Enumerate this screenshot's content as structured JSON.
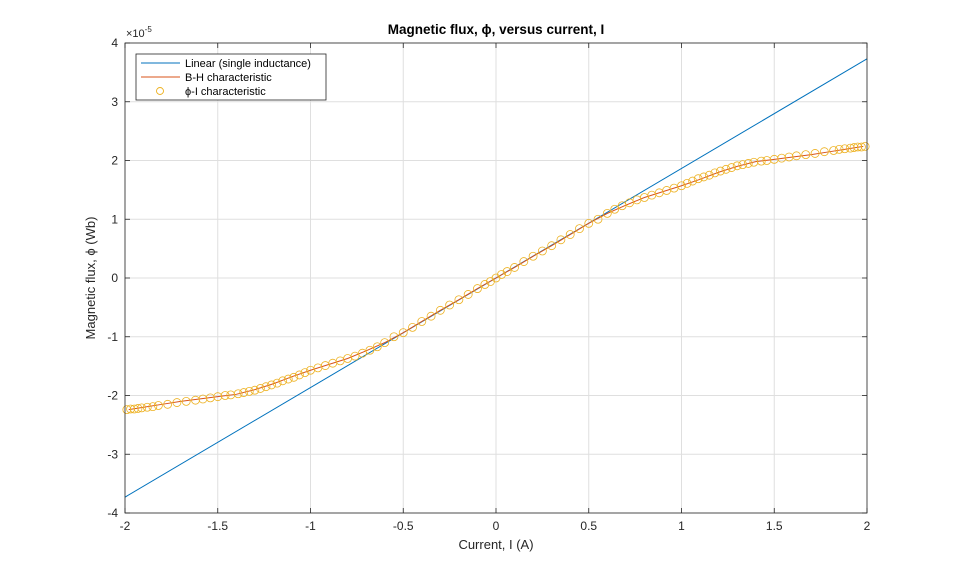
{
  "chart_data": {
    "type": "line",
    "title": "Magnetic flux, ϕ, versus current, I",
    "xlabel": "Current, I (A)",
    "ylabel": "Magnetic flux, ϕ  (Wb)",
    "y_exponent_base": "×10",
    "y_exponent_power": "-5",
    "xlim": [
      -2,
      2
    ],
    "ylim": [
      -4,
      4
    ],
    "x_ticks": [
      -2,
      -1.5,
      -1,
      -0.5,
      0,
      0.5,
      1,
      1.5,
      2
    ],
    "x_tick_labels": [
      "-2",
      "-1.5",
      "-1",
      "-0.5",
      "0",
      "0.5",
      "1",
      "1.5",
      "2"
    ],
    "y_ticks": [
      -4,
      -3,
      -2,
      -1,
      0,
      1,
      2,
      3,
      4
    ],
    "y_tick_labels": [
      "-4",
      "-3",
      "-2",
      "-1",
      "0",
      "1",
      "2",
      "3",
      "4"
    ],
    "grid": true,
    "legend_position": "top-left",
    "colors": {
      "linear": "#0072BD",
      "bh": "#D95319",
      "phi_i": "#EDB120"
    },
    "series": [
      {
        "name": "Linear (single inductance)",
        "style": "line",
        "x": [
          -2,
          2
        ],
        "y": [
          -3.73,
          3.73
        ]
      },
      {
        "name": "B-H characteristic",
        "style": "line",
        "x": [
          -1.98,
          -1.9,
          -1.8,
          -1.7,
          -1.6,
          -1.5,
          -1.4,
          -1.3,
          -1.2,
          -1.1,
          -1.0,
          -0.9,
          -0.8,
          -0.7,
          -0.6,
          -0.5,
          -0.4,
          -0.3,
          -0.2,
          -0.1,
          0,
          0.1,
          0.2,
          0.3,
          0.4,
          0.5,
          0.6,
          0.7,
          0.8,
          0.9,
          1.0,
          1.1,
          1.2,
          1.3,
          1.4,
          1.5,
          1.6,
          1.7,
          1.8,
          1.9,
          1.98
        ],
        "y": [
          -2.24,
          -2.2,
          -2.15,
          -2.1,
          -2.06,
          -2.02,
          -1.98,
          -1.9,
          -1.8,
          -1.68,
          -1.57,
          -1.47,
          -1.37,
          -1.24,
          -1.1,
          -0.93,
          -0.74,
          -0.55,
          -0.37,
          -0.18,
          0,
          0.18,
          0.37,
          0.55,
          0.74,
          0.93,
          1.1,
          1.24,
          1.37,
          1.47,
          1.57,
          1.68,
          1.8,
          1.9,
          1.98,
          2.02,
          2.06,
          2.1,
          2.15,
          2.2,
          2.24
        ]
      },
      {
        "name": "ϕ-I characteristic",
        "style": "markers",
        "x": [
          -1.99,
          -1.97,
          -1.95,
          -1.93,
          -1.91,
          -1.88,
          -1.85,
          -1.82,
          -1.77,
          -1.72,
          -1.67,
          -1.62,
          -1.58,
          -1.54,
          -1.5,
          -1.46,
          -1.43,
          -1.39,
          -1.36,
          -1.33,
          -1.3,
          -1.27,
          -1.24,
          -1.21,
          -1.18,
          -1.15,
          -1.12,
          -1.09,
          -1.06,
          -1.03,
          -1.0,
          -0.96,
          -0.92,
          -0.88,
          -0.84,
          -0.8,
          -0.76,
          -0.72,
          -0.68,
          -0.64,
          -0.6,
          -0.55,
          -0.5,
          -0.45,
          -0.4,
          -0.35,
          -0.3,
          -0.25,
          -0.2,
          -0.15,
          -0.1,
          -0.06,
          -0.03,
          0,
          0.03,
          0.06,
          0.1,
          0.15,
          0.2,
          0.25,
          0.3,
          0.35,
          0.4,
          0.45,
          0.5,
          0.55,
          0.6,
          0.64,
          0.68,
          0.72,
          0.76,
          0.8,
          0.84,
          0.88,
          0.92,
          0.96,
          1.0,
          1.03,
          1.06,
          1.09,
          1.12,
          1.15,
          1.18,
          1.21,
          1.24,
          1.27,
          1.3,
          1.33,
          1.36,
          1.39,
          1.43,
          1.46,
          1.5,
          1.54,
          1.58,
          1.62,
          1.67,
          1.72,
          1.77,
          1.82,
          1.85,
          1.88,
          1.91,
          1.93,
          1.95,
          1.97,
          1.99
        ],
        "y": [
          -2.24,
          -2.23,
          -2.23,
          -2.22,
          -2.21,
          -2.2,
          -2.19,
          -2.17,
          -2.15,
          -2.12,
          -2.1,
          -2.08,
          -2.06,
          -2.04,
          -2.02,
          -2.0,
          -1.99,
          -1.97,
          -1.95,
          -1.93,
          -1.91,
          -1.88,
          -1.85,
          -1.82,
          -1.79,
          -1.75,
          -1.72,
          -1.69,
          -1.65,
          -1.61,
          -1.57,
          -1.53,
          -1.49,
          -1.45,
          -1.41,
          -1.37,
          -1.33,
          -1.28,
          -1.23,
          -1.17,
          -1.1,
          -1.0,
          -0.93,
          -0.84,
          -0.74,
          -0.65,
          -0.55,
          -0.46,
          -0.37,
          -0.28,
          -0.18,
          -0.11,
          -0.06,
          0,
          0.06,
          0.11,
          0.18,
          0.28,
          0.37,
          0.46,
          0.55,
          0.65,
          0.74,
          0.84,
          0.93,
          1.0,
          1.1,
          1.17,
          1.23,
          1.28,
          1.33,
          1.37,
          1.41,
          1.45,
          1.49,
          1.53,
          1.57,
          1.61,
          1.65,
          1.69,
          1.72,
          1.75,
          1.79,
          1.82,
          1.85,
          1.88,
          1.91,
          1.93,
          1.95,
          1.97,
          1.99,
          2.0,
          2.02,
          2.04,
          2.06,
          2.08,
          2.1,
          2.12,
          2.15,
          2.17,
          2.19,
          2.2,
          2.21,
          2.22,
          2.23,
          2.23,
          2.24
        ]
      }
    ]
  }
}
